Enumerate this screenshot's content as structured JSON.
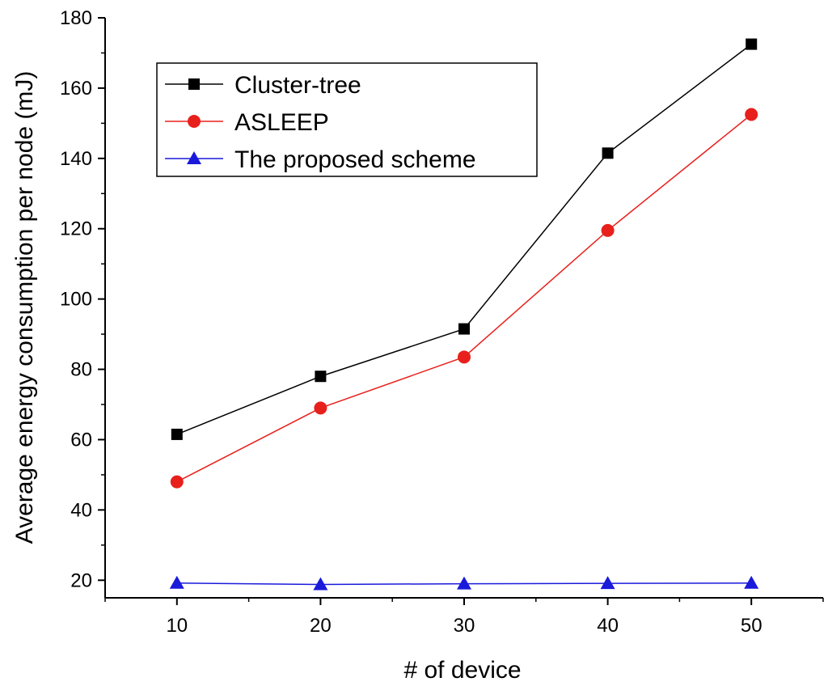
{
  "chart_data": {
    "type": "line",
    "title": "",
    "xlabel": "# of device",
    "ylabel": "Average energy consumption per node (mJ)",
    "x": [
      10,
      20,
      30,
      40,
      50
    ],
    "xlim": [
      5,
      55
    ],
    "ylim": [
      15,
      180
    ],
    "xticks": [
      10,
      20,
      30,
      40,
      50
    ],
    "yticks": [
      20,
      40,
      60,
      80,
      100,
      120,
      140,
      160,
      180
    ],
    "legend_position": "top-left",
    "grid": false,
    "series": [
      {
        "name": "Cluster-tree",
        "color": "#000000",
        "marker": "square",
        "values": [
          61.5,
          78,
          91.5,
          141.5,
          172.5
        ]
      },
      {
        "name": "ASLEEP",
        "color": "#e8201c",
        "marker": "circle",
        "values": [
          48,
          69,
          83.5,
          119.5,
          152.5
        ]
      },
      {
        "name": "The proposed scheme",
        "color": "#1a1adb",
        "marker": "triangle",
        "values": [
          19.2,
          18.8,
          19.0,
          19.1,
          19.2
        ]
      }
    ]
  }
}
